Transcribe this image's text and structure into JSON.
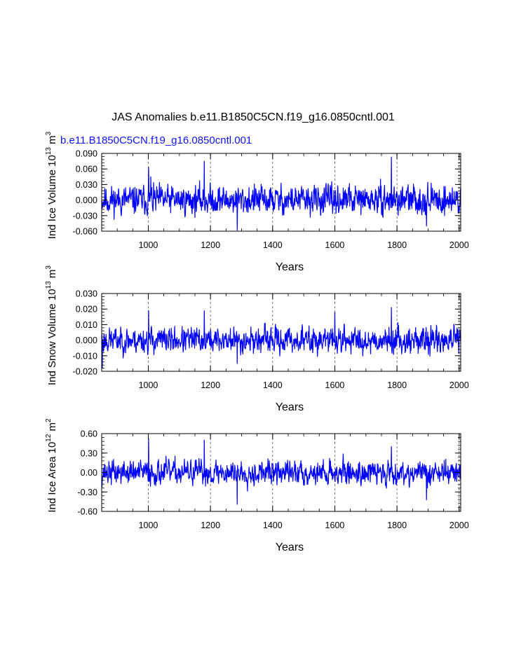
{
  "figure": {
    "title": "JAS Anomalies b.e11.B1850C5CN.f19_g16.0850cntl.001",
    "subtitle": "b.e11.B1850C5CN.f19_g16.0850cntl.001"
  },
  "colors": {
    "series": "#0000ff",
    "axes": "#000000",
    "gridlines": "#555555"
  },
  "chart_data": [
    {
      "type": "line",
      "title": "",
      "ylabel_main": "Ind Ice Volume 10",
      "ylabel_exp": "13",
      "ylabel_unit": " m",
      "ylabel_unit_exp": "3",
      "xlabel": "Years",
      "xlim": [
        850,
        2005
      ],
      "ylim": [
        -0.06,
        0.09
      ],
      "xticks": [
        1000,
        1200,
        1400,
        1600,
        1800,
        2000
      ],
      "xtick_labels": [
        "1000",
        "1200",
        "1400",
        "1600",
        "1800",
        "2000"
      ],
      "yticks": [
        -0.06,
        -0.03,
        0.0,
        0.03,
        0.06,
        0.09
      ],
      "ytick_labels": [
        "-0.060",
        "-0.030",
        "0.000",
        "0.030",
        "0.060",
        "0.090"
      ],
      "vgrid": [
        1000,
        1200,
        1400,
        1600,
        1800,
        2000
      ],
      "series_amplitude": 0.022,
      "seed": 11,
      "peaks": [
        [
          1001,
          0.063
        ],
        [
          1180,
          0.075
        ],
        [
          1782,
          0.083
        ],
        [
          1286,
          -0.058
        ],
        [
          1008,
          0.045
        ],
        [
          1895,
          -0.05
        ]
      ],
      "series_name": "Ind Ice Volume"
    },
    {
      "type": "line",
      "title": "",
      "ylabel_main": "Ind Snow Volume 10",
      "ylabel_exp": "13",
      "ylabel_unit": " m",
      "ylabel_unit_exp": "3",
      "xlabel": "Years",
      "xlim": [
        850,
        2005
      ],
      "ylim": [
        -0.02,
        0.03
      ],
      "xticks": [
        1000,
        1200,
        1400,
        1600,
        1800,
        2000
      ],
      "xtick_labels": [
        "1000",
        "1200",
        "1400",
        "1600",
        "1800",
        "2000"
      ],
      "yticks": [
        -0.02,
        -0.01,
        0.0,
        0.01,
        0.02,
        0.03
      ],
      "ytick_labels": [
        "-0.020",
        "-0.010",
        "0.000",
        "0.010",
        "0.020",
        "0.030"
      ],
      "vgrid": [
        1000,
        1200,
        1400,
        1600,
        1800,
        2000
      ],
      "series_amplitude": 0.0065,
      "seed": 23,
      "peaks": [
        [
          1001,
          0.019
        ],
        [
          1180,
          0.019
        ],
        [
          1600,
          0.018
        ],
        [
          1782,
          0.021
        ],
        [
          852,
          -0.018
        ],
        [
          1286,
          -0.015
        ]
      ],
      "series_name": "Ind Snow Volume"
    },
    {
      "type": "line",
      "title": "",
      "ylabel_main": "Ind Ice Area 10",
      "ylabel_exp": "12",
      "ylabel_unit": " m",
      "ylabel_unit_exp": "2",
      "xlabel": "Years",
      "xlim": [
        850,
        2005
      ],
      "ylim": [
        -0.6,
        0.6
      ],
      "xticks": [
        1000,
        1200,
        1400,
        1600,
        1800,
        2000
      ],
      "xtick_labels": [
        "1000",
        "1200",
        "1400",
        "1600",
        "1800",
        "2000"
      ],
      "yticks": [
        -0.6,
        -0.3,
        0.0,
        0.3,
        0.6
      ],
      "ytick_labels": [
        "-0.60",
        "-0.30",
        "0.00",
        "0.30",
        "0.60"
      ],
      "vgrid": [
        1000,
        1200,
        1400,
        1600,
        1800,
        2000
      ],
      "series_amplitude": 0.15,
      "seed": 37,
      "peaks": [
        [
          1001,
          0.52
        ],
        [
          1180,
          0.5
        ],
        [
          1286,
          -0.49
        ],
        [
          1895,
          -0.42
        ],
        [
          1782,
          0.4
        ]
      ],
      "series_name": "Ind Ice Area"
    }
  ]
}
